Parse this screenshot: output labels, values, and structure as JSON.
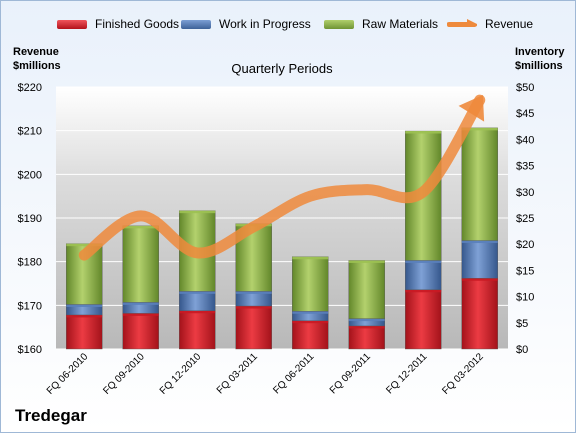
{
  "brand": "Tredegar",
  "colors": {
    "finished_goods": "#d11f2a",
    "work_in_progress": "#4f76b3",
    "raw_materials": "#8fb24a",
    "revenue": "#ee8a3c"
  },
  "chart_data": {
    "type": "bar",
    "stacked": true,
    "title": "Quarterly Periods",
    "categories": [
      "FQ 06-2010",
      "FQ 09-2010",
      "FQ 12-2010",
      "FQ 03-2011",
      "FQ 06-2011",
      "FQ 09-2011",
      "FQ 12-2011",
      "FQ 03-2012"
    ],
    "series": [
      {
        "name": "Finished Goods",
        "axis": "right",
        "values": [
          6.5,
          6.8,
          7.3,
          8.2,
          5.4,
          4.4,
          11.3,
          13.5
        ]
      },
      {
        "name": "Work in Progress",
        "axis": "right",
        "values": [
          2.0,
          2.1,
          3.7,
          2.8,
          1.8,
          1.4,
          5.6,
          7.2
        ]
      },
      {
        "name": "Raw Materials",
        "axis": "right",
        "values": [
          11.6,
          14.6,
          15.4,
          12.9,
          10.4,
          11.1,
          24.7,
          21.5
        ]
      },
      {
        "name": "Revenue",
        "type": "line",
        "axis": "left",
        "values": [
          181.5,
          190.5,
          182.0,
          188.0,
          195.0,
          196.5,
          196.0,
          217.0
        ]
      }
    ],
    "y_left": {
      "label": "Revenue $millions",
      "label_lines": [
        "Revenue",
        "$millions"
      ],
      "range": [
        160,
        220
      ],
      "ticks": [
        "$220",
        "$210",
        "$200",
        "$190",
        "$180",
        "$170",
        "$160"
      ]
    },
    "y_right": {
      "label": "Inventory $millions",
      "label_lines": [
        "Inventory",
        "$millions"
      ],
      "range": [
        0,
        50
      ],
      "ticks": [
        "$50",
        "$45",
        "$40",
        "$35",
        "$30",
        "$25",
        "$20",
        "$15",
        "$10",
        "$5",
        "$0"
      ]
    },
    "legend": {
      "position": "top",
      "items": [
        "Finished Goods",
        "Work in Progress",
        "Raw Materials",
        "Revenue"
      ]
    },
    "grid": true
  }
}
